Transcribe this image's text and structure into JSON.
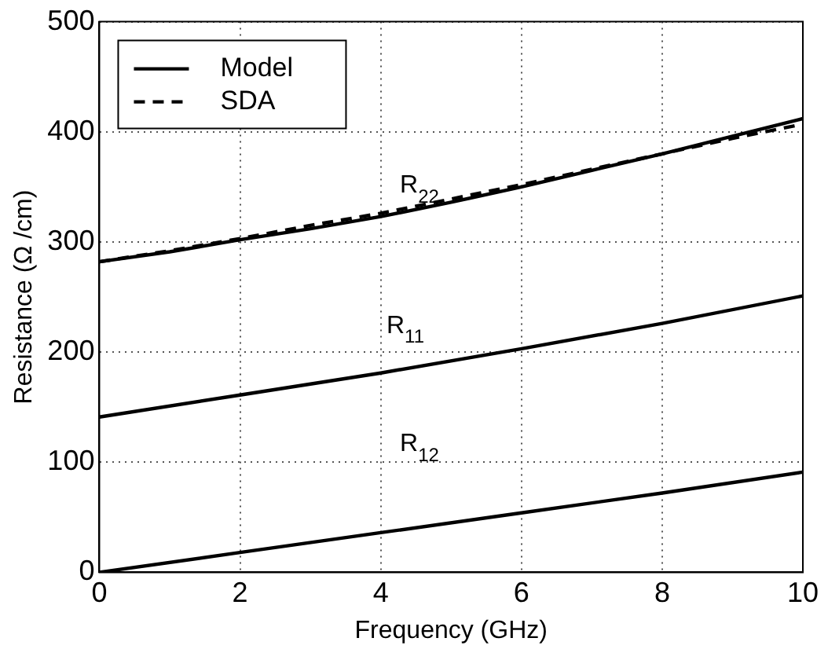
{
  "chart_data": {
    "type": "line",
    "xlabel": "Frequency (GHz)",
    "ylabel": "Resistance (Ω /cm)",
    "xlim": [
      0,
      10
    ],
    "xticks": [
      0,
      2,
      4,
      6,
      8,
      10
    ],
    "ylim": [
      0,
      500
    ],
    "yticks": [
      0,
      100,
      200,
      300,
      400,
      500
    ],
    "grid": true,
    "legend": "top left",
    "series": [
      {
        "name": "Model",
        "color": "#000000",
        "line_style": "solid",
        "x": [
          0,
          1,
          2,
          3,
          4,
          5,
          6,
          7,
          8,
          9,
          10
        ],
        "values": [
          282,
          291,
          302,
          312,
          323,
          336,
          350,
          365,
          380,
          396,
          412
        ]
      },
      {
        "name": "SDA",
        "color": "#000000",
        "line_style": "dashed",
        "x": [
          0,
          1,
          2,
          3,
          4,
          5,
          6,
          7,
          8,
          9,
          10
        ],
        "values": [
          282,
          292,
          303,
          315,
          326,
          339,
          352,
          366,
          380,
          394,
          407
        ]
      },
      {
        "color": "#000000",
        "line_style": "solid",
        "x": [
          0,
          2,
          4,
          6,
          8,
          10
        ],
        "values": [
          141,
          161,
          181,
          203,
          226,
          251
        ]
      },
      {
        "color": "#000000",
        "line_style": "solid",
        "x": [
          0,
          2,
          4,
          6,
          8,
          10
        ],
        "values": [
          0,
          18,
          36,
          54,
          72,
          91
        ]
      }
    ],
    "annotations": [
      "R$_{22}$",
      "R$_{11}$",
      "R$_{12}$"
    ]
  }
}
